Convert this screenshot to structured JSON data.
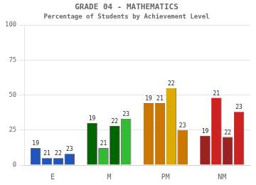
{
  "chart_data": {
    "type": "bar",
    "title": "GRADE 04 - MATHEMATICS",
    "subtitle": "Percentage of Students by Achievement Level",
    "categories": [
      "E",
      "M",
      "PM",
      "NM"
    ],
    "series": [
      {
        "name": "19",
        "values": [
          12,
          30,
          44,
          21
        ],
        "colors": [
          "#2255bb",
          "#006600",
          "#cc7700",
          "#992222"
        ]
      },
      {
        "name": "21",
        "values": [
          5,
          12,
          44,
          48
        ],
        "colors": [
          "#2255bb",
          "#33bb33",
          "#cc7700",
          "#cc2222"
        ]
      },
      {
        "name": "22",
        "values": [
          5,
          28,
          55,
          20
        ],
        "colors": [
          "#2255bb",
          "#006600",
          "#ddaa00",
          "#992222"
        ]
      },
      {
        "name": "23",
        "values": [
          8,
          33,
          25,
          38
        ],
        "colors": [
          "#2255bb",
          "#33bb33",
          "#cc7700",
          "#cc2222"
        ]
      }
    ],
    "ylim": [
      0,
      100
    ],
    "yticks": [
      0,
      25,
      50,
      75,
      100
    ],
    "grid": true
  }
}
